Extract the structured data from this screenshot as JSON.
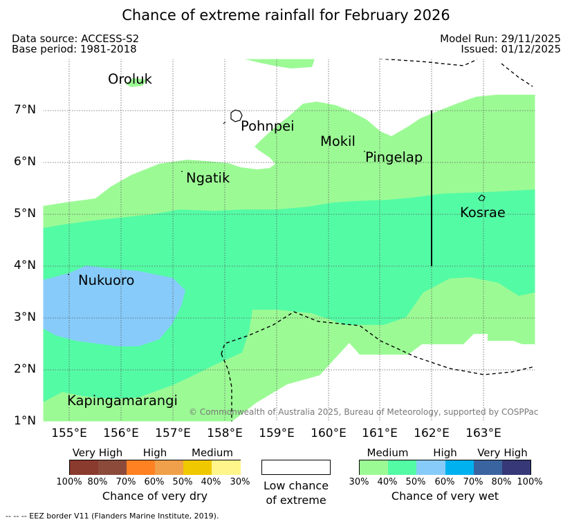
{
  "title": "Chance of extreme rainfall for February 2026",
  "meta": {
    "data_source": "Data source: ACCESS-S2",
    "base_period": "Base period: 1981-2018",
    "model_run": "Model Run: 29/11/2025",
    "issued": "Issued: 01/12/2025"
  },
  "map": {
    "lon_range": [
      154.5,
      164.0
    ],
    "lat_range": [
      1.0,
      8.0
    ],
    "x_ticks": [
      "155°E",
      "156°E",
      "157°E",
      "158°E",
      "159°E",
      "160°E",
      "161°E",
      "162°E",
      "163°E"
    ],
    "y_ticks": [
      "7°N",
      "6°N",
      "5°N",
      "4°N",
      "3°N",
      "2°N",
      "1°N"
    ],
    "places": [
      {
        "name": "Oroluk"
      },
      {
        "name": "Pohnpei"
      },
      {
        "name": "Mokil"
      },
      {
        "name": "Pingelap"
      },
      {
        "name": "Ngatik"
      },
      {
        "name": "Kosrae"
      },
      {
        "name": "Nukuoro"
      },
      {
        "name": "Kapingamarangi"
      }
    ],
    "copyright": "© Commonwealth of Australia 2025, Bureau of Meteorology, supported by COSPPac"
  },
  "legend": {
    "dry": {
      "groups": [
        "Very High",
        "High",
        "Medium"
      ],
      "colors": [
        "#8b3a2e",
        "#8b4a3a",
        "#ff8122",
        "#f0a04a",
        "#f0c800",
        "#fff58a"
      ],
      "ticks": [
        "100%",
        "80%",
        "70%",
        "60%",
        "50%",
        "40%",
        "30%"
      ],
      "title": "Chance of very dry"
    },
    "low": {
      "line1": "Low chance",
      "line2": "of extreme",
      "color": "#ffffff"
    },
    "wet": {
      "groups": [
        "Medium",
        "High",
        "Very High"
      ],
      "colors": [
        "#9cfa95",
        "#54fba5",
        "#87cbfa",
        "#00b1f0",
        "#3a64a0",
        "#363878"
      ],
      "ticks": [
        "30%",
        "40%",
        "50%",
        "60%",
        "70%",
        "80%",
        "100%"
      ],
      "title": "Chance of very wet"
    }
  },
  "footnote": "--  --  -- EEZ border V11 (Flanders Marine Institute, 2019)."
}
